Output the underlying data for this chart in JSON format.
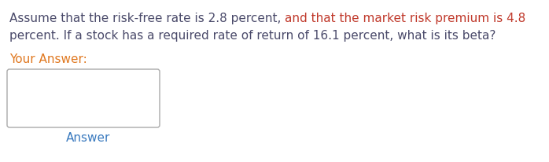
{
  "seg1_text": "Assume that the risk-free rate is 2.8 percent, ",
  "seg2_text": "and that the market risk premium is 4.8",
  "seg1_color": "#4a4a6a",
  "seg2_color": "#c0392b",
  "line2_text": "percent. If a stock has a required rate of return of 16.1 percent, what is its beta?",
  "line2_color": "#4a4a6a",
  "your_answer_label": "Your Answer:",
  "your_answer_color": "#e07820",
  "answer_label": "Answer",
  "answer_label_color": "#3a7abf",
  "background_color": "#ffffff",
  "font_size": 11.0,
  "font_family": "DejaVu Sans"
}
